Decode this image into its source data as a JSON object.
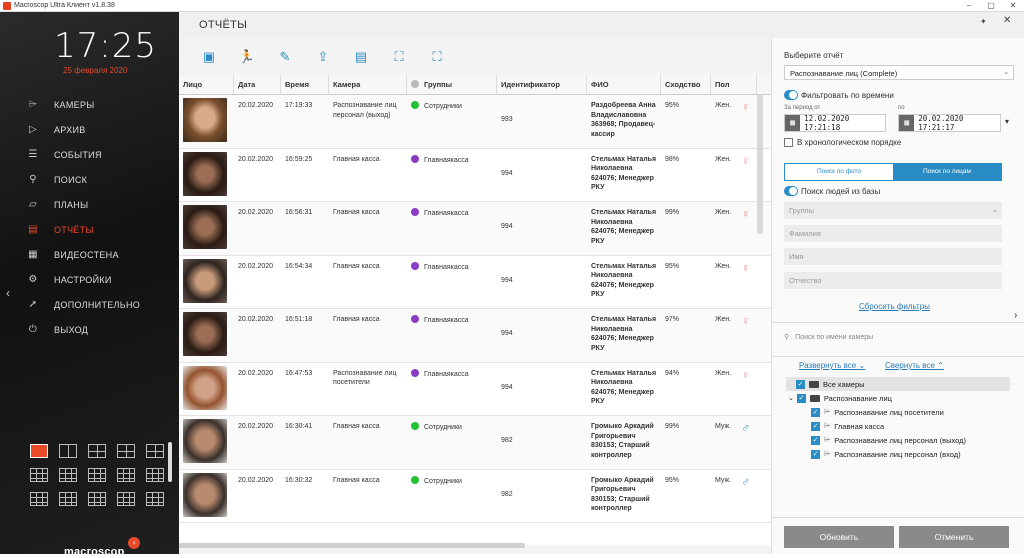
{
  "window": {
    "title": "Macroscop Ultra Клиент v1.8.38",
    "controls": [
      "–",
      "▢",
      "✕"
    ]
  },
  "sidebar": {
    "time": "17:25",
    "date": "25 февраля 2020",
    "items": [
      {
        "label": "КАМЕРЫ",
        "icon": "camera-icon"
      },
      {
        "label": "АРХИВ",
        "icon": "archive-icon"
      },
      {
        "label": "СОБЫТИЯ",
        "icon": "events-icon"
      },
      {
        "label": "ПОИСК",
        "icon": "search-icon"
      },
      {
        "label": "ПЛАНЫ",
        "icon": "plans-icon"
      },
      {
        "label": "ОТЧЁТЫ",
        "icon": "reports-icon",
        "active": true
      },
      {
        "label": "ВИДЕОСТЕНА",
        "icon": "videowall-icon"
      },
      {
        "label": "НАСТРОЙКИ",
        "icon": "settings-icon"
      },
      {
        "label": "ДОПОЛНИТЕЛЬНО",
        "icon": "additional-icon"
      },
      {
        "label": "ВЫХОД",
        "icon": "power-icon"
      }
    ],
    "logo": "macroscop"
  },
  "header": {
    "title": "ОТЧЁТЫ"
  },
  "toolbar": {
    "icons": [
      "video-export-icon",
      "run-icon",
      "edit-icon",
      "upload-icon",
      "report-icon",
      "add-person-icon",
      "remove-person-icon"
    ]
  },
  "table": {
    "columns": [
      "Лицо",
      "Дата",
      "Время",
      "Камера",
      "Группы",
      "Идентификатор",
      "ФИО",
      "Сходство",
      "Пол"
    ],
    "rows": [
      {
        "date": "20.02.2020",
        "time": "17:19:33",
        "camera": "Распознавание лиц персонал (выход)",
        "group": "Сотрудники",
        "group_color": "#22c232",
        "id": "993",
        "fio": "Раздобреева Анна Владиславовна 363968; Продавец-кассир",
        "similarity": "95%",
        "sex": "Жен.",
        "face": "f1"
      },
      {
        "date": "20.02.2020",
        "time": "16:59:25",
        "camera": "Главная касса",
        "group": "Главнаякасса",
        "group_color": "#8a3cc4",
        "id": "994",
        "fio": "Стельмах Наталья Николаевна 624076; Менеджер РКУ",
        "similarity": "98%",
        "sex": "Жен.",
        "face": "f2"
      },
      {
        "date": "20.02.2020",
        "time": "16:56:31",
        "camera": "Главная касса",
        "group": "Главнаякасса",
        "group_color": "#8a3cc4",
        "id": "994",
        "fio": "Стельмах Наталья Николаевна 624076; Менеджер РКУ",
        "similarity": "99%",
        "sex": "Жен.",
        "face": "f2"
      },
      {
        "date": "20.02.2020",
        "time": "16:54:34",
        "camera": "Главная касса",
        "group": "Главнаякасса",
        "group_color": "#8a3cc4",
        "id": "994",
        "fio": "Стельмах Наталья Николаевна 624076; Менеджер РКУ",
        "similarity": "95%",
        "sex": "Жен.",
        "face": "f3"
      },
      {
        "date": "20.02.2020",
        "time": "16:51:18",
        "camera": "Главная касса",
        "group": "Главнаякасса",
        "group_color": "#8a3cc4",
        "id": "994",
        "fio": "Стельмах Наталья Николаевна 624076; Менеджер РКУ",
        "similarity": "97%",
        "sex": "Жен.",
        "face": "f2"
      },
      {
        "date": "20.02.2020",
        "time": "16:47:53",
        "camera": "Распознавание лиц посетители",
        "group": "Главнаякасса",
        "group_color": "#8a3cc4",
        "id": "994",
        "fio": "Стельмах Наталья Николаевна 624076; Менеджер РКУ",
        "similarity": "94%",
        "sex": "Жен.",
        "face": "f4"
      },
      {
        "date": "20.02.2020",
        "time": "16:30:41",
        "camera": "Главная касса",
        "group": "Сотрудники",
        "group_color": "#22c232",
        "id": "982",
        "fio": "Громыко Аркадий Григорьевич 830153; Старший контроллер",
        "similarity": "99%",
        "sex": "Муж.",
        "face": "f5"
      },
      {
        "date": "20.02.2020",
        "time": "16:30:32",
        "camera": "Главная касса",
        "group": "Сотрудники",
        "group_color": "#22c232",
        "id": "982",
        "fio": "Громыко Аркадий Григорьевич 830153; Старший контроллер",
        "similarity": "95%",
        "sex": "Муж.",
        "face": "f5"
      }
    ]
  },
  "panel": {
    "choose_label": "Выберите отчёт",
    "report": "Распознавание лиц (Complete)",
    "filter_time": "Фильтровать по времени",
    "from_label": "За период от",
    "to_label": "по",
    "from_value": "12.02.2020 17:21:18",
    "to_value": "20.02.2020 17:21:17",
    "chrono": "В хронологическом порядке",
    "tab_photo": "Поиск по фото",
    "tab_faces": "Поиск по лицам",
    "db_search": "Поиск людей из базы",
    "groups_placeholder": "Группы",
    "surname_placeholder": "Фамилия",
    "name_placeholder": "Имя",
    "patronymic_placeholder": "Отчество",
    "reset": "Сбросить фильтры",
    "camera_search_placeholder": "Поиск по имени камеры",
    "expand_all": "Развернуть все",
    "collapse_all": "Свернуть все",
    "tree": {
      "all": "Все камеры",
      "folder": "Распознавание лиц",
      "cameras": [
        "Распознавание лиц посетители",
        "Главная касса",
        "Распознавание лиц персонал (выход)",
        "Распознавание лиц персонал (вход)"
      ]
    },
    "update": "Обновить",
    "cancel": "Отменить"
  },
  "colors": {
    "accent": "#e84a2a",
    "blue": "#2a8cc4",
    "female": "#f08a8a",
    "male": "#3aa0d8"
  }
}
